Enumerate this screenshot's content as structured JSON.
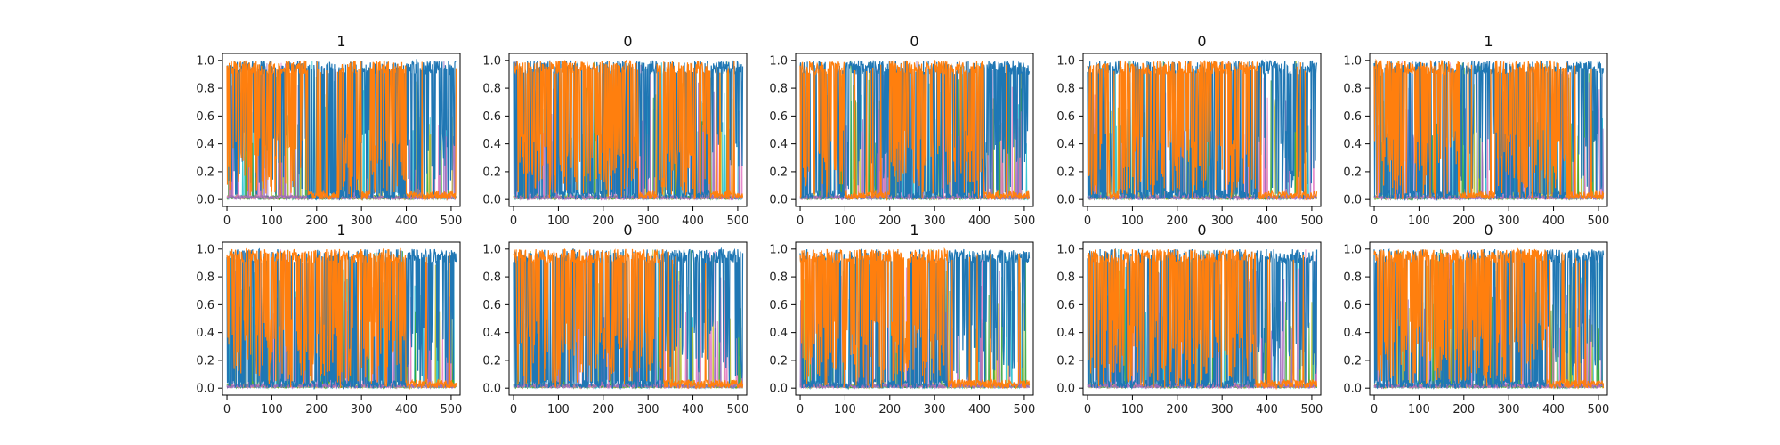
{
  "figure": {
    "background": "#ffffff",
    "colors": {
      "blue": "#1f77b4",
      "orange": "#ff7f0e",
      "cyan": "#17becf",
      "olive": "#bcbd22",
      "green": "#2ca02c",
      "pink": "#e377c2",
      "purple": "#9467bd",
      "axis": "#000000"
    }
  },
  "chart_data": [
    {
      "type": "line",
      "title": "1",
      "xlim": [
        -10,
        520
      ],
      "ylim": [
        -0.05,
        1.05
      ],
      "xticks": [
        0,
        100,
        200,
        300,
        400,
        500
      ],
      "yticks": [
        0.0,
        0.2,
        0.4,
        0.6,
        0.8,
        1.0
      ],
      "dominant_series": [
        {
          "name": "",
          "color": "#1f77b4",
          "segments": [
            [
              0,
              180
            ],
            [
              300,
              320
            ],
            [
              400,
              512
            ]
          ]
        },
        {
          "name": "",
          "color": "#ff7f0e",
          "segments": [
            [
              0,
              180
            ],
            [
              250,
              300
            ],
            [
              320,
              400
            ]
          ]
        }
      ]
    },
    {
      "type": "line",
      "title": "0",
      "xlim": [
        -10,
        520
      ],
      "ylim": [
        -0.05,
        1.05
      ],
      "xticks": [
        0,
        100,
        200,
        300,
        400,
        500
      ],
      "yticks": [
        0.0,
        0.2,
        0.4,
        0.6,
        0.8,
        1.0
      ],
      "dominant_series": [
        {
          "name": "",
          "color": "#1f77b4",
          "segments": [
            [
              280,
              320
            ],
            [
              440,
              512
            ]
          ]
        },
        {
          "name": "",
          "color": "#ff7f0e",
          "segments": [
            [
              0,
              280
            ],
            [
              320,
              440
            ]
          ]
        }
      ]
    },
    {
      "type": "line",
      "title": "0",
      "xlim": [
        -10,
        520
      ],
      "ylim": [
        -0.05,
        1.05
      ],
      "xticks": [
        0,
        100,
        200,
        300,
        400,
        500
      ],
      "yticks": [
        0.0,
        0.2,
        0.4,
        0.6,
        0.8,
        1.0
      ],
      "dominant_series": [
        {
          "name": "",
          "color": "#1f77b4",
          "segments": [
            [
              100,
              200
            ],
            [
              410,
              512
            ]
          ]
        },
        {
          "name": "",
          "color": "#ff7f0e",
          "segments": [
            [
              0,
              100
            ],
            [
              200,
              410
            ]
          ]
        }
      ]
    },
    {
      "type": "line",
      "title": "0",
      "xlim": [
        -10,
        520
      ],
      "ylim": [
        -0.05,
        1.05
      ],
      "xticks": [
        0,
        100,
        200,
        300,
        400,
        500
      ],
      "yticks": [
        0.0,
        0.2,
        0.4,
        0.6,
        0.8,
        1.0
      ],
      "dominant_series": [
        {
          "name": "",
          "color": "#1f77b4",
          "segments": [
            [
              50,
              70
            ],
            [
              380,
              512
            ]
          ]
        },
        {
          "name": "",
          "color": "#ff7f0e",
          "segments": [
            [
              0,
              50
            ],
            [
              70,
              380
            ]
          ]
        }
      ]
    },
    {
      "type": "line",
      "title": "1",
      "xlim": [
        -10,
        520
      ],
      "ylim": [
        -0.05,
        1.05
      ],
      "xticks": [
        0,
        100,
        200,
        300,
        400,
        500
      ],
      "yticks": [
        0.0,
        0.2,
        0.4,
        0.6,
        0.8,
        1.0
      ],
      "dominant_series": [
        {
          "name": "",
          "color": "#1f77b4",
          "segments": [
            [
              190,
              270
            ],
            [
              430,
              512
            ]
          ]
        },
        {
          "name": "",
          "color": "#ff7f0e",
          "segments": [
            [
              0,
              190
            ],
            [
              270,
              430
            ]
          ]
        }
      ]
    },
    {
      "type": "line",
      "title": "1",
      "xlim": [
        -10,
        520
      ],
      "ylim": [
        -0.05,
        1.05
      ],
      "xticks": [
        0,
        100,
        200,
        300,
        400,
        500
      ],
      "yticks": [
        0.0,
        0.2,
        0.4,
        0.6,
        0.8,
        1.0
      ],
      "dominant_series": [
        {
          "name": "",
          "color": "#1f77b4",
          "segments": [
            [
              400,
              512
            ]
          ]
        },
        {
          "name": "",
          "color": "#ff7f0e",
          "segments": [
            [
              0,
              400
            ]
          ]
        }
      ]
    },
    {
      "type": "line",
      "title": "0",
      "xlim": [
        -10,
        520
      ],
      "ylim": [
        -0.05,
        1.05
      ],
      "xticks": [
        0,
        100,
        200,
        300,
        400,
        500
      ],
      "yticks": [
        0.0,
        0.2,
        0.4,
        0.6,
        0.8,
        1.0
      ],
      "dominant_series": [
        {
          "name": "",
          "color": "#1f77b4",
          "segments": [
            [
              335,
              512
            ]
          ]
        },
        {
          "name": "",
          "color": "#ff7f0e",
          "segments": [
            [
              0,
              335
            ]
          ]
        }
      ]
    },
    {
      "type": "line",
      "title": "1",
      "xlim": [
        -10,
        520
      ],
      "ylim": [
        -0.05,
        1.05
      ],
      "xticks": [
        0,
        100,
        200,
        300,
        400,
        500
      ],
      "yticks": [
        0.0,
        0.2,
        0.4,
        0.6,
        0.8,
        1.0
      ],
      "dominant_series": [
        {
          "name": "",
          "color": "#1f77b4",
          "segments": [
            [
              330,
              512
            ]
          ]
        },
        {
          "name": "",
          "color": "#ff7f0e",
          "segments": [
            [
              0,
              330
            ]
          ]
        }
      ]
    },
    {
      "type": "line",
      "title": "0",
      "xlim": [
        -10,
        520
      ],
      "ylim": [
        -0.05,
        1.05
      ],
      "xticks": [
        0,
        100,
        200,
        300,
        400,
        500
      ],
      "yticks": [
        0.0,
        0.2,
        0.4,
        0.6,
        0.8,
        1.0
      ],
      "dominant_series": [
        {
          "name": "",
          "color": "#1f77b4",
          "segments": [
            [
              375,
              512
            ]
          ]
        },
        {
          "name": "",
          "color": "#ff7f0e",
          "segments": [
            [
              0,
              375
            ]
          ]
        }
      ]
    },
    {
      "type": "line",
      "title": "0",
      "xlim": [
        -10,
        520
      ],
      "ylim": [
        -0.05,
        1.05
      ],
      "xticks": [
        0,
        100,
        200,
        300,
        400,
        500
      ],
      "yticks": [
        0.0,
        0.2,
        0.4,
        0.6,
        0.8,
        1.0
      ],
      "dominant_series": [
        {
          "name": "",
          "color": "#1f77b4",
          "segments": [
            [
              385,
              512
            ]
          ]
        },
        {
          "name": "",
          "color": "#ff7f0e",
          "segments": [
            [
              0,
              385
            ]
          ]
        }
      ]
    }
  ]
}
